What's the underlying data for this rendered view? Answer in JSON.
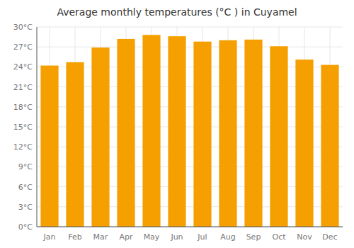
{
  "chart_data": {
    "type": "bar",
    "title": "Average monthly temperatures (°C ) in Cuyamel",
    "categories": [
      "Jan",
      "Feb",
      "Mar",
      "Apr",
      "May",
      "Jun",
      "Jul",
      "Aug",
      "Sep",
      "Oct",
      "Nov",
      "Dec"
    ],
    "values": [
      24.2,
      24.7,
      26.9,
      28.2,
      28.8,
      28.6,
      27.8,
      28.0,
      28.1,
      27.1,
      25.1,
      24.3
    ],
    "color": "#F5A000",
    "ylim": [
      0,
      30
    ],
    "yticks": [
      {
        "value": 0,
        "label": "0°C"
      },
      {
        "value": 3,
        "label": "3°C"
      },
      {
        "value": 6,
        "label": "6°C"
      },
      {
        "value": 9,
        "label": "9°C"
      },
      {
        "value": 12,
        "label": "12°C"
      },
      {
        "value": 15,
        "label": "15°C"
      },
      {
        "value": 18,
        "label": "18°C"
      },
      {
        "value": 21,
        "label": "21°C"
      },
      {
        "value": 24,
        "label": "24°C"
      },
      {
        "value": 27,
        "label": "27°C"
      },
      {
        "value": 30,
        "label": "30°C"
      }
    ],
    "grid": true
  }
}
